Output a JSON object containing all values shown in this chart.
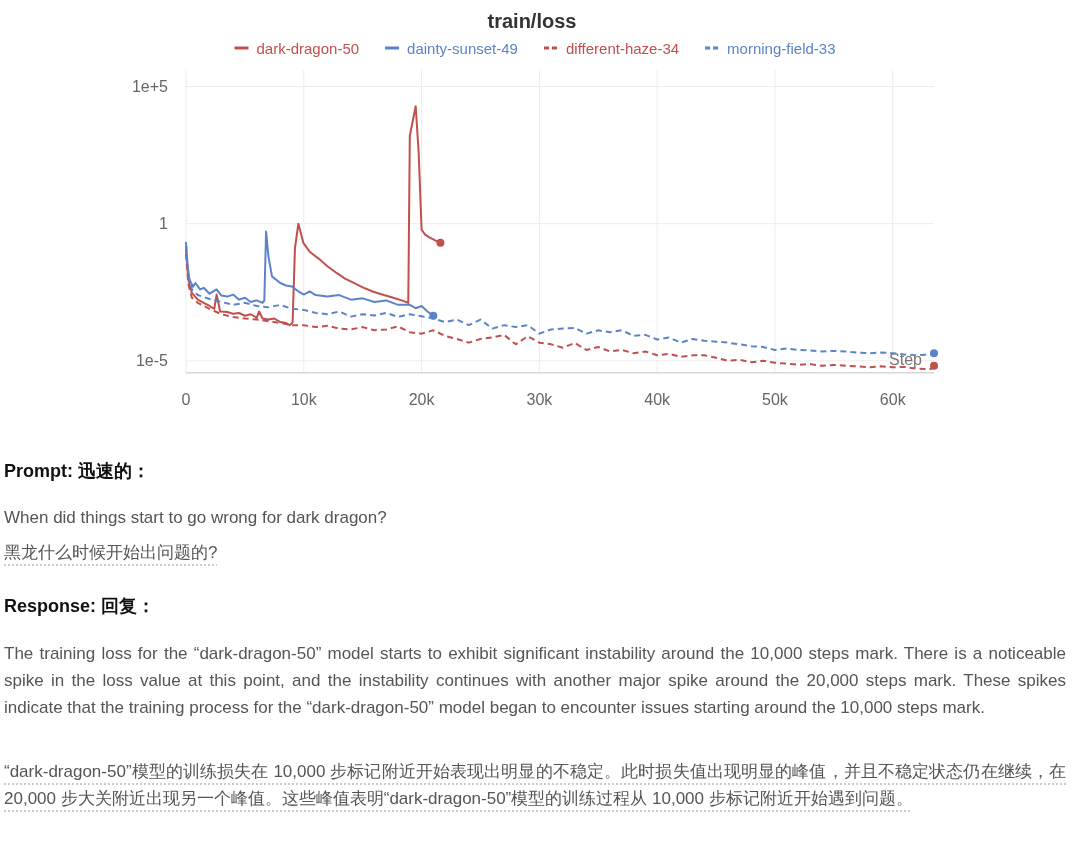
{
  "chart_data": {
    "type": "line",
    "title": "train/loss",
    "xlabel": "Step",
    "log": "y",
    "grid": true,
    "legend": "top",
    "xlim": [
      0,
      63500
    ],
    "ylim": [
      3.7e-06,
      400000.0
    ],
    "xticks": [
      0,
      {
        "value": 10000,
        "label": "10k"
      },
      {
        "value": 20000,
        "label": "20k"
      },
      {
        "value": 30000,
        "label": "30k"
      },
      {
        "value": 40000,
        "label": "40k"
      },
      {
        "value": 50000,
        "label": "50k"
      },
      {
        "value": 60000,
        "label": "60k"
      }
    ],
    "yticks": [
      {
        "value": 1e-05,
        "label": "1e-5"
      },
      1,
      {
        "value": 100000.0,
        "label": "1e+5"
      }
    ],
    "series": [
      {
        "name": "dark-dragon-50",
        "color": "#c0504d",
        "line_style": "solid",
        "x": [
          0,
          200,
          500,
          1000,
          1500,
          2000,
          2400,
          2600,
          2900,
          3500,
          4000,
          4500,
          5000,
          5500,
          6000,
          6200,
          6500,
          7000,
          7500,
          8000,
          8500,
          8800,
          9050,
          9250,
          9540,
          9960,
          10500,
          11370,
          12000,
          12780,
          13500,
          14200,
          15000,
          15900,
          16800,
          17600,
          18300,
          18870,
          19000,
          19500,
          19750,
          20000,
          20300,
          20700,
          21200,
          21600
        ],
        "values": [
          0.11,
          0.0091,
          0.003,
          0.0017,
          0.0013,
          0.001,
          0.00079,
          0.0026,
          0.00063,
          0.0006,
          0.00052,
          0.00056,
          0.00044,
          0.0005,
          0.00037,
          0.00063,
          0.00035,
          0.00032,
          0.00035,
          0.00026,
          0.00024,
          0.0002,
          0.00025,
          0.13,
          1,
          0.2,
          0.095,
          0.049,
          0.028,
          0.016,
          0.01,
          0.0071,
          0.0048,
          0.0033,
          0.0025,
          0.002,
          0.0016,
          0.0013,
          1600,
          19000,
          400,
          0.6,
          0.4,
          0.31,
          0.24,
          0.2
        ]
      },
      {
        "name": "dainty-sunset-49",
        "color": "#5b84c8",
        "line_style": "solid",
        "x": [
          0,
          150,
          300,
          600,
          800,
          1200,
          1500,
          2000,
          2600,
          3000,
          3500,
          4000,
          4500,
          5000,
          5500,
          6000,
          6500,
          6650,
          6800,
          7000,
          7300,
          8000,
          8500,
          9000,
          9500,
          10000,
          10500,
          11000,
          12000,
          13000,
          14000,
          15000,
          16000,
          17000,
          18000,
          19000,
          19500,
          20000,
          20500,
          21000
        ],
        "values": [
          0.2,
          0.025,
          0.0091,
          0.005,
          0.0069,
          0.004,
          0.0046,
          0.0028,
          0.004,
          0.0024,
          0.0022,
          0.0026,
          0.0017,
          0.002,
          0.0014,
          0.0016,
          0.0013,
          0.0016,
          0.52,
          0.063,
          0.012,
          0.0069,
          0.0056,
          0.0051,
          0.0035,
          0.0026,
          0.0034,
          0.0025,
          0.0022,
          0.0025,
          0.0017,
          0.0019,
          0.0014,
          0.0016,
          0.0011,
          0.0011,
          0.00083,
          0.001,
          0.00063,
          0.00044
        ]
      },
      {
        "name": "different-haze-34",
        "color": "#c0504d",
        "line_style": "dashed",
        "x": [
          0,
          200,
          500,
          1000,
          2000,
          3000,
          4000,
          5000,
          6000,
          7000,
          8000,
          9000,
          10000,
          11000,
          12000,
          13000,
          14000,
          15000,
          16000,
          17000,
          18000,
          19000,
          20000,
          21000,
          22000,
          23000,
          24000,
          25000,
          26000,
          27000,
          28000,
          29000,
          30000,
          31000,
          32000,
          33000,
          34000,
          35000,
          36000,
          37000,
          38000,
          39000,
          40000,
          41000,
          42000,
          43000,
          44000,
          45000,
          46000,
          47000,
          48000,
          49000,
          50000,
          51000,
          52000,
          53000,
          54000,
          55000,
          56000,
          57000,
          58000,
          59000,
          60000,
          61000,
          62000,
          63300
        ],
        "values": [
          0.079,
          0.0063,
          0.002,
          0.0013,
          0.00079,
          0.0005,
          0.0004,
          0.00035,
          0.00032,
          0.00028,
          0.00024,
          0.0002,
          0.0002,
          0.00017,
          0.00019,
          0.00015,
          0.00014,
          0.00017,
          0.00013,
          0.00014,
          0.00018,
          0.00011,
          9.8e-05,
          0.00013,
          8.1e-05,
          6.3e-05,
          4.6e-05,
          6.3e-05,
          7.1e-05,
          8.9e-05,
          4e-05,
          7.9e-05,
          4.6e-05,
          4e-05,
          3e-05,
          4.5e-05,
          2.5e-05,
          3.2e-05,
          2.2e-05,
          2.5e-05,
          1.9e-05,
          2.2e-05,
          1.6e-05,
          1.8e-05,
          1.4e-05,
          1.6e-05,
          1.6e-05,
          1.3e-05,
          1e-05,
          1.1e-05,
          8.9e-06,
          1e-05,
          8.5e-06,
          7.9e-06,
          7.2e-06,
          7.6e-06,
          6.6e-06,
          7.1e-06,
          6.6e-06,
          6.3e-06,
          5.8e-06,
          6.3e-06,
          5.8e-06,
          6e-06,
          5.2e-06,
          5e-06
        ]
      },
      {
        "name": "morning-field-33",
        "color": "#5b84c8",
        "line_style": "dashed",
        "x": [
          0,
          200,
          500,
          1000,
          2000,
          3000,
          4000,
          5000,
          6000,
          7000,
          8000,
          9000,
          10000,
          11000,
          12000,
          13000,
          14000,
          15000,
          16000,
          17000,
          18000,
          19000,
          20000,
          21000,
          22000,
          23000,
          24000,
          25000,
          26000,
          27000,
          28000,
          29000,
          30000,
          31000,
          32000,
          33000,
          34000,
          35000,
          36000,
          37000,
          38000,
          39000,
          40000,
          41000,
          42000,
          43000,
          44000,
          45000,
          46000,
          47000,
          48000,
          49000,
          50000,
          51000,
          52000,
          53000,
          54000,
          55000,
          56000,
          57000,
          58000,
          59000,
          60000,
          61000,
          62000,
          63300
        ],
        "values": [
          0.16,
          0.013,
          0.004,
          0.0025,
          0.0018,
          0.0014,
          0.0011,
          0.0013,
          0.001,
          0.00089,
          0.0011,
          0.00079,
          0.00072,
          0.00056,
          0.0005,
          0.00063,
          0.00041,
          0.0005,
          0.00045,
          0.00056,
          0.0004,
          0.0005,
          0.00042,
          0.00035,
          0.00026,
          0.00032,
          0.0002,
          0.00032,
          0.00015,
          0.0002,
          0.00017,
          0.0002,
          9.8e-05,
          0.00014,
          0.00015,
          0.00016,
          9.8e-05,
          0.00013,
          0.00011,
          0.00013,
          8.1e-05,
          8.9e-05,
          6e-05,
          7.1e-05,
          4.6e-05,
          6.3e-05,
          5.4e-05,
          5e-05,
          4.6e-05,
          4e-05,
          3.4e-05,
          3.2e-05,
          2.5e-05,
          2.8e-05,
          2.5e-05,
          2.4e-05,
          2.2e-05,
          2.3e-05,
          2.2e-05,
          2e-05,
          1.9e-05,
          2e-05,
          1.9e-05,
          1.7e-05,
          1.6e-05,
          1.7e-05
        ]
      },
      {
        "type": "scatter",
        "marker": "circle",
        "x": [
          21600,
          21000,
          63500,
          63500
        ],
        "values": [
          0.2,
          0.00044,
          6.6e-06,
          1.9e-05
        ],
        "colors": [
          "#c0504d",
          "#5b84c8",
          "#c0504d",
          "#5b84c8"
        ]
      }
    ],
    "annotations": [
      "Prompt: 迅速的：",
      "When did things start to go wrong for dark dragon?",
      "黑龙什么时候开始出问题的?",
      "Response: 回复：",
      "The training loss for the “dark-dragon-50” model starts to exhibit significant instability around the 10,000 steps mark. There is a noticeable spike in the loss value at this point, and the instability continues with another major spike around the 20,000 steps mark. These spikes indicate that the training process for the “dark-dragon-50” model began to encounter issues starting around the 10,000 steps mark.",
      "“dark-dragon-50”模型的训练损失在 10,000 步标记附近开始表现出明显的不稳定。此时损失值出现明显的峰值，并且不稳定状态仍在继续，在 20,000 步大关附近出现另一个峰值。这些峰值表明“dark-dragon-50”模型的训练过程从 10,000 步标记附近开始遇到问题。"
    ]
  }
}
